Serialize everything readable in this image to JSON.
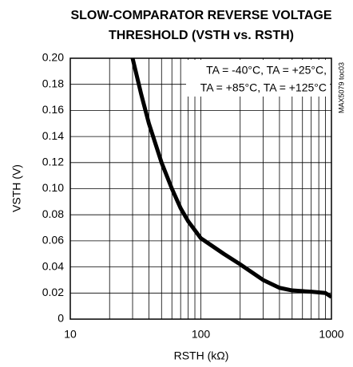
{
  "chart_data": {
    "type": "line",
    "title": [
      "SLOW-COMPARATOR REVERSE VOLTAGE",
      "THRESHOLD (VSTH vs. RSTH)"
    ],
    "xlabel": "RSTH (kΩ)",
    "ylabel": "VSTH (V)",
    "annotations": [
      "TA = -40°C, TA = +25°C,",
      "TA = +85°C, TA = +125°C"
    ],
    "side_note": "MAX5079 toc03",
    "x": [
      30,
      35,
      40,
      50,
      60,
      70,
      80,
      100,
      150,
      200,
      300,
      400,
      500,
      700,
      900,
      1000
    ],
    "series": [
      {
        "color": "#000000",
        "values": [
          0.2,
          0.172,
          0.15,
          0.12,
          0.1,
          0.085,
          0.075,
          0.062,
          0.05,
          0.042,
          0.03,
          0.024,
          0.022,
          0.021,
          0.02,
          0.017
        ]
      }
    ],
    "xscale": "log",
    "xlim": [
      10,
      1000
    ],
    "xticks": [
      10,
      100,
      1000
    ],
    "xminorticks": [
      20,
      30,
      40,
      50,
      60,
      70,
      80,
      90,
      200,
      300,
      400,
      500,
      600,
      700,
      800,
      900
    ],
    "ylim": [
      0,
      0.2
    ],
    "yticks": [
      {
        "value": 0,
        "label": "0"
      },
      0.02,
      0.04,
      0.06,
      0.08,
      {
        "value": 0.1,
        "label": "0.10"
      },
      0.12,
      0.14,
      0.16,
      0.18,
      {
        "value": 0.2,
        "label": "0.20"
      }
    ],
    "grid": true
  }
}
